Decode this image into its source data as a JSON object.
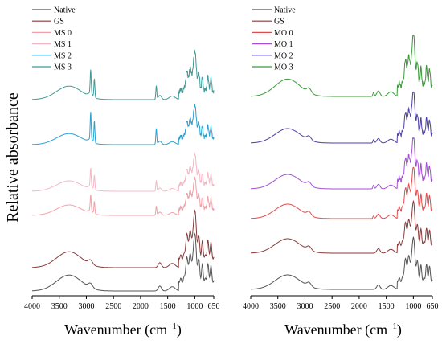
{
  "chart_data": [
    {
      "type": "line",
      "title": "",
      "xlabel_text": "Wavenumber (cm",
      "xlabel_sup": "−1",
      "xlabel_end": ")",
      "ylabel": "Relative absorbance",
      "x_reversed": true,
      "xlim": [
        4000,
        650
      ],
      "x_ticks": [
        4000,
        3500,
        3000,
        2500,
        2000,
        1500,
        1000,
        650
      ],
      "legend_position": "top-left",
      "series": [
        {
          "name": "Native",
          "color": "#555555"
        },
        {
          "name": "GS",
          "color": "#8b3a3a"
        },
        {
          "name": "MS 0",
          "color": "#f2a0a8"
        },
        {
          "name": "MS 1",
          "color": "#f4b8c6"
        },
        {
          "name": "MS 2",
          "color": "#2aa3d3"
        },
        {
          "name": "MS 3",
          "color": "#3f9a97"
        }
      ]
    },
    {
      "type": "line",
      "title": "",
      "xlabel_text": "Wavenumber (cm",
      "xlabel_sup": "−1",
      "xlabel_end": ")",
      "ylabel": "",
      "x_reversed": true,
      "xlim": [
        4000,
        650
      ],
      "x_ticks": [
        4000,
        3500,
        3000,
        2500,
        2000,
        1500,
        1000,
        650
      ],
      "legend_position": "top-left",
      "series": [
        {
          "name": "Native",
          "color": "#555555"
        },
        {
          "name": "GS",
          "color": "#8b3a3a"
        },
        {
          "name": "MO 0",
          "color": "#e34b4b"
        },
        {
          "name": "MO 1",
          "color": "#a64ed6"
        },
        {
          "name": "MO 2",
          "color": "#4b3fa8"
        },
        {
          "name": "MO 3",
          "color": "#3a9a3a"
        }
      ]
    }
  ]
}
